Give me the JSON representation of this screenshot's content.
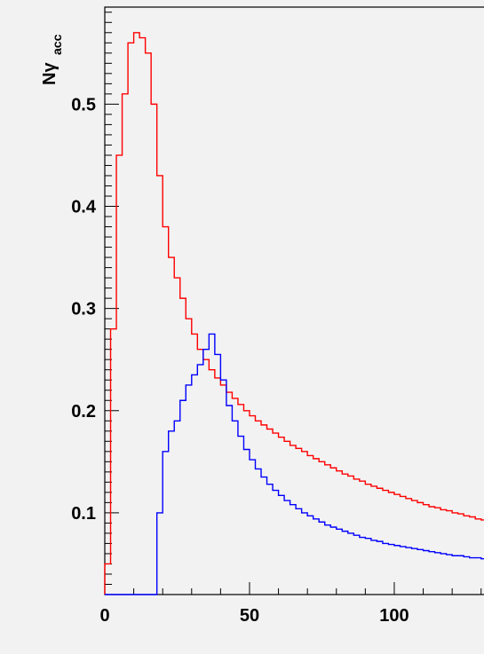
{
  "chart_data": {
    "type": "line",
    "title": "",
    "xlabel": "",
    "ylabel": "Nγ",
    "ylabel_sub": "acc",
    "xlim": [
      0,
      131
    ],
    "ylim": [
      0.02,
      0.595
    ],
    "x_ticks": [
      0,
      50,
      100
    ],
    "y_ticks": [
      0.1,
      0.2,
      0.3,
      0.4,
      0.5
    ],
    "x_tick_labels": [
      "0",
      "50",
      "100"
    ],
    "y_tick_labels": [
      "0.1",
      "0.2",
      "0.3",
      "0.4",
      "0.5"
    ],
    "grid": false,
    "bin_width": 2,
    "series": [
      {
        "color": "#ff0000",
        "x_start": 0,
        "values": [
          0.05,
          0.28,
          0.45,
          0.51,
          0.56,
          0.57,
          0.565,
          0.55,
          0.5,
          0.43,
          0.38,
          0.35,
          0.33,
          0.31,
          0.29,
          0.275,
          0.26,
          0.25,
          0.24,
          0.232,
          0.225,
          0.218,
          0.212,
          0.206,
          0.2,
          0.195,
          0.19,
          0.186,
          0.182,
          0.178,
          0.174,
          0.17,
          0.166,
          0.163,
          0.16,
          0.156,
          0.153,
          0.15,
          0.147,
          0.144,
          0.141,
          0.138,
          0.136,
          0.133,
          0.131,
          0.128,
          0.126,
          0.124,
          0.122,
          0.12,
          0.118,
          0.116,
          0.114,
          0.112,
          0.11,
          0.108,
          0.106,
          0.105,
          0.103,
          0.102,
          0.1,
          0.099,
          0.097,
          0.096,
          0.094,
          0.093
        ]
      },
      {
        "color": "#0000ff",
        "x_start": 0,
        "values": [
          0.02,
          0.02,
          0.02,
          0.02,
          0.02,
          0.02,
          0.02,
          0.02,
          0.02,
          0.1,
          0.16,
          0.18,
          0.19,
          0.21,
          0.225,
          0.235,
          0.245,
          0.26,
          0.275,
          0.255,
          0.23,
          0.205,
          0.19,
          0.175,
          0.162,
          0.152,
          0.143,
          0.135,
          0.128,
          0.122,
          0.117,
          0.112,
          0.108,
          0.104,
          0.1,
          0.097,
          0.094,
          0.091,
          0.088,
          0.086,
          0.084,
          0.082,
          0.08,
          0.078,
          0.076,
          0.075,
          0.073,
          0.072,
          0.07,
          0.069,
          0.068,
          0.067,
          0.066,
          0.065,
          0.064,
          0.063,
          0.062,
          0.061,
          0.06,
          0.059,
          0.058,
          0.058,
          0.057,
          0.056,
          0.056,
          0.055
        ]
      }
    ]
  }
}
